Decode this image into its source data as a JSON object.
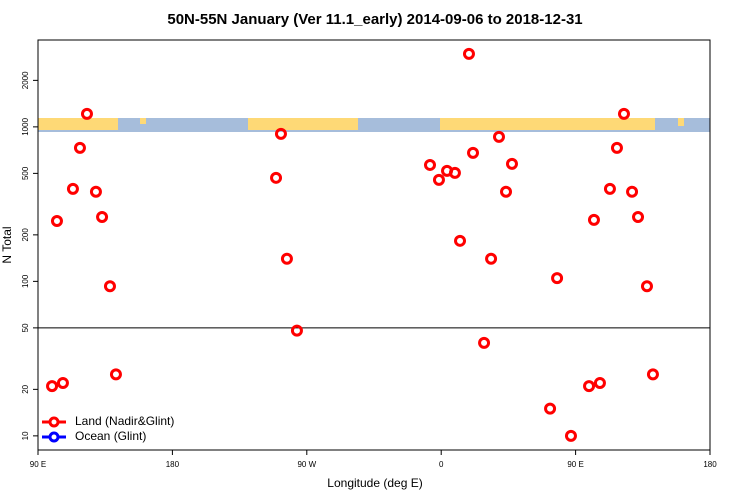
{
  "chart_data": {
    "type": "scatter",
    "title": "50N-55N January (Ver 11.1_early)   2014-09-06 to 2018-12-31",
    "x_label": "Longitude (deg E)",
    "y_label": "N Total",
    "xlim": [
      90,
      540
    ],
    "xticks": [
      {
        "value": 90,
        "label": "90 E"
      },
      {
        "value": 180,
        "label": "180"
      },
      {
        "value": 270,
        "label": "90 W"
      },
      {
        "value": 360,
        "label": "0"
      },
      {
        "value": 450,
        "label": "90 E"
      },
      {
        "value": 540,
        "label": "180"
      }
    ],
    "ylim": [
      8.1,
      3650
    ],
    "log_y": true,
    "yticks": [
      10,
      20,
      50,
      100,
      200,
      500,
      1000,
      2000
    ],
    "hline": 50,
    "legend": "bottom-left",
    "series": [
      {
        "name": "Land (Nadir&Glint)",
        "color": "#ff0000",
        "x": [
          99.4,
          102.7,
          106.7,
          113.4,
          118.1,
          122.8,
          128.8,
          132.9,
          138.2,
          142.2,
          249.4,
          252.7,
          256.7,
          263.4,
          352.5,
          358.5,
          363.9,
          369.2,
          372.6,
          378.6,
          381.3,
          388.7,
          393.4,
          398.7,
          403.4,
          407.4,
          432.9,
          437.6,
          446.9,
          459,
          462.3,
          466.3,
          473,
          477.7,
          482.4,
          487.8,
          491.8,
          497.8,
          501.8
        ],
        "values": [
          21,
          246,
          22,
          397,
          731,
          1213,
          380,
          261,
          93,
          25,
          468,
          901,
          140,
          48,
          567,
          454,
          519,
          504,
          183,
          2967,
          679,
          40,
          140,
          862,
          380,
          576,
          15,
          105,
          10,
          21,
          250,
          22,
          397,
          731,
          1213,
          380,
          261,
          93,
          25
        ]
      },
      {
        "name": "Ocean (Glint)",
        "color": "#0000ff",
        "x": [],
        "values": []
      }
    ]
  }
}
